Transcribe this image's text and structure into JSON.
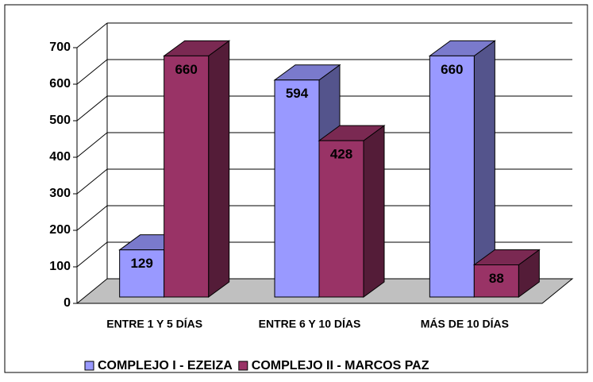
{
  "chart_data": {
    "type": "bar3d",
    "categories": [
      "ENTRE 1 Y 5 DÍAS",
      "ENTRE 6 Y 10 DÍAS",
      "MÁS DE 10 DÍAS"
    ],
    "series": [
      {
        "name": "COMPLEJO I - EZEIZA",
        "color": "#9999ff",
        "values": [
          129,
          594,
          660
        ]
      },
      {
        "name": "COMPLEJO II - MARCOS PAZ",
        "color": "#993366",
        "values": [
          660,
          428,
          88
        ]
      }
    ],
    "ylim": [
      0,
      700
    ],
    "yticks": [
      0,
      100,
      200,
      300,
      400,
      500,
      600,
      700
    ],
    "grid": true
  }
}
